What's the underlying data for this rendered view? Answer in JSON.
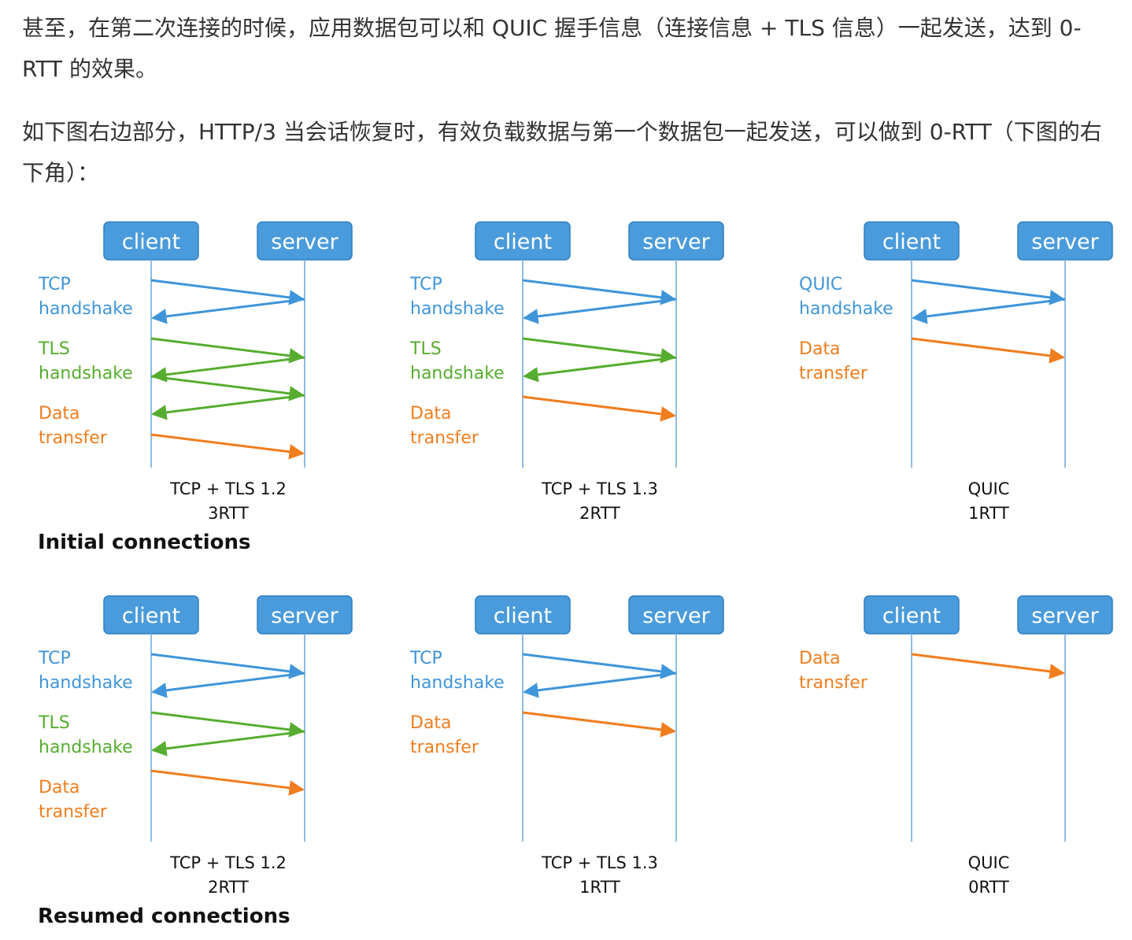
{
  "article": {
    "paragraph_1": "甚至，在第二次连接的时候，应用数据包可以和 QUIC 握手信息（连接信息 + TLS 信息）一起发送，达到 0-RTT 的效果。",
    "paragraph_2": "如下图右边部分，HTTP/3 当会话恢复时，有效负载数据与第一个数据包一起发送，可以做到 0-RTT（下图的右下角）："
  },
  "figure": {
    "colors": {
      "box_fill": "#4a9bdb",
      "box_stroke": "#2f7fc1",
      "lifeline": "#8dbbe3",
      "tcp": "#3f95d9",
      "tls": "#56ad2f",
      "data": "#f07d1e"
    },
    "participants": {
      "client": "client",
      "server": "server"
    },
    "sections": [
      {
        "title": "Initial connections",
        "panels": [
          {
            "caption_line1": "TCP + TLS 1.2",
            "caption_line2": "3RTT",
            "labels": [
              {
                "kind": "tcp",
                "lines": [
                  "TCP",
                  "handshake"
                ]
              },
              {
                "kind": "tls",
                "lines": [
                  "TLS",
                  "handshake"
                ]
              },
              {
                "kind": "data",
                "lines": [
                  "Data",
                  "transfer"
                ]
              }
            ],
            "messages": [
              "tcp",
              "tcp",
              "tls",
              "tls",
              "tls",
              "tls",
              "data"
            ]
          },
          {
            "caption_line1": "TCP + TLS 1.3",
            "caption_line2": "2RTT",
            "labels": [
              {
                "kind": "tcp",
                "lines": [
                  "TCP",
                  "handshake"
                ]
              },
              {
                "kind": "tls",
                "lines": [
                  "TLS",
                  "handshake"
                ]
              },
              {
                "kind": "data",
                "lines": [
                  "Data",
                  "transfer"
                ]
              }
            ],
            "messages": [
              "tcp",
              "tcp",
              "tls",
              "tls",
              "data"
            ]
          },
          {
            "caption_line1": "QUIC",
            "caption_line2": "1RTT",
            "labels": [
              {
                "kind": "tcp",
                "lines": [
                  "QUIC",
                  "handshake"
                ]
              },
              {
                "kind": "data",
                "lines": [
                  "Data",
                  "transfer"
                ]
              }
            ],
            "messages": [
              "tcp",
              "tcp",
              "data"
            ]
          }
        ]
      },
      {
        "title": "Resumed connections",
        "panels": [
          {
            "caption_line1": "TCP + TLS 1.2",
            "caption_line2": "2RTT",
            "labels": [
              {
                "kind": "tcp",
                "lines": [
                  "TCP",
                  "handshake"
                ]
              },
              {
                "kind": "tls",
                "lines": [
                  "TLS",
                  "handshake"
                ]
              },
              {
                "kind": "data",
                "lines": [
                  "Data",
                  "transfer"
                ]
              }
            ],
            "messages": [
              "tcp",
              "tcp",
              "tls",
              "tls",
              "data"
            ]
          },
          {
            "caption_line1": "TCP + TLS 1.3",
            "caption_line2": "1RTT",
            "labels": [
              {
                "kind": "tcp",
                "lines": [
                  "TCP",
                  "handshake"
                ]
              },
              {
                "kind": "data",
                "lines": [
                  "Data",
                  "transfer"
                ]
              }
            ],
            "messages": [
              "tcp",
              "tcp",
              "data"
            ]
          },
          {
            "caption_line1": "QUIC",
            "caption_line2": "0RTT",
            "labels": [
              {
                "kind": "data",
                "lines": [
                  "Data",
                  "transfer"
                ]
              }
            ],
            "messages": [
              "data"
            ]
          }
        ]
      }
    ]
  }
}
